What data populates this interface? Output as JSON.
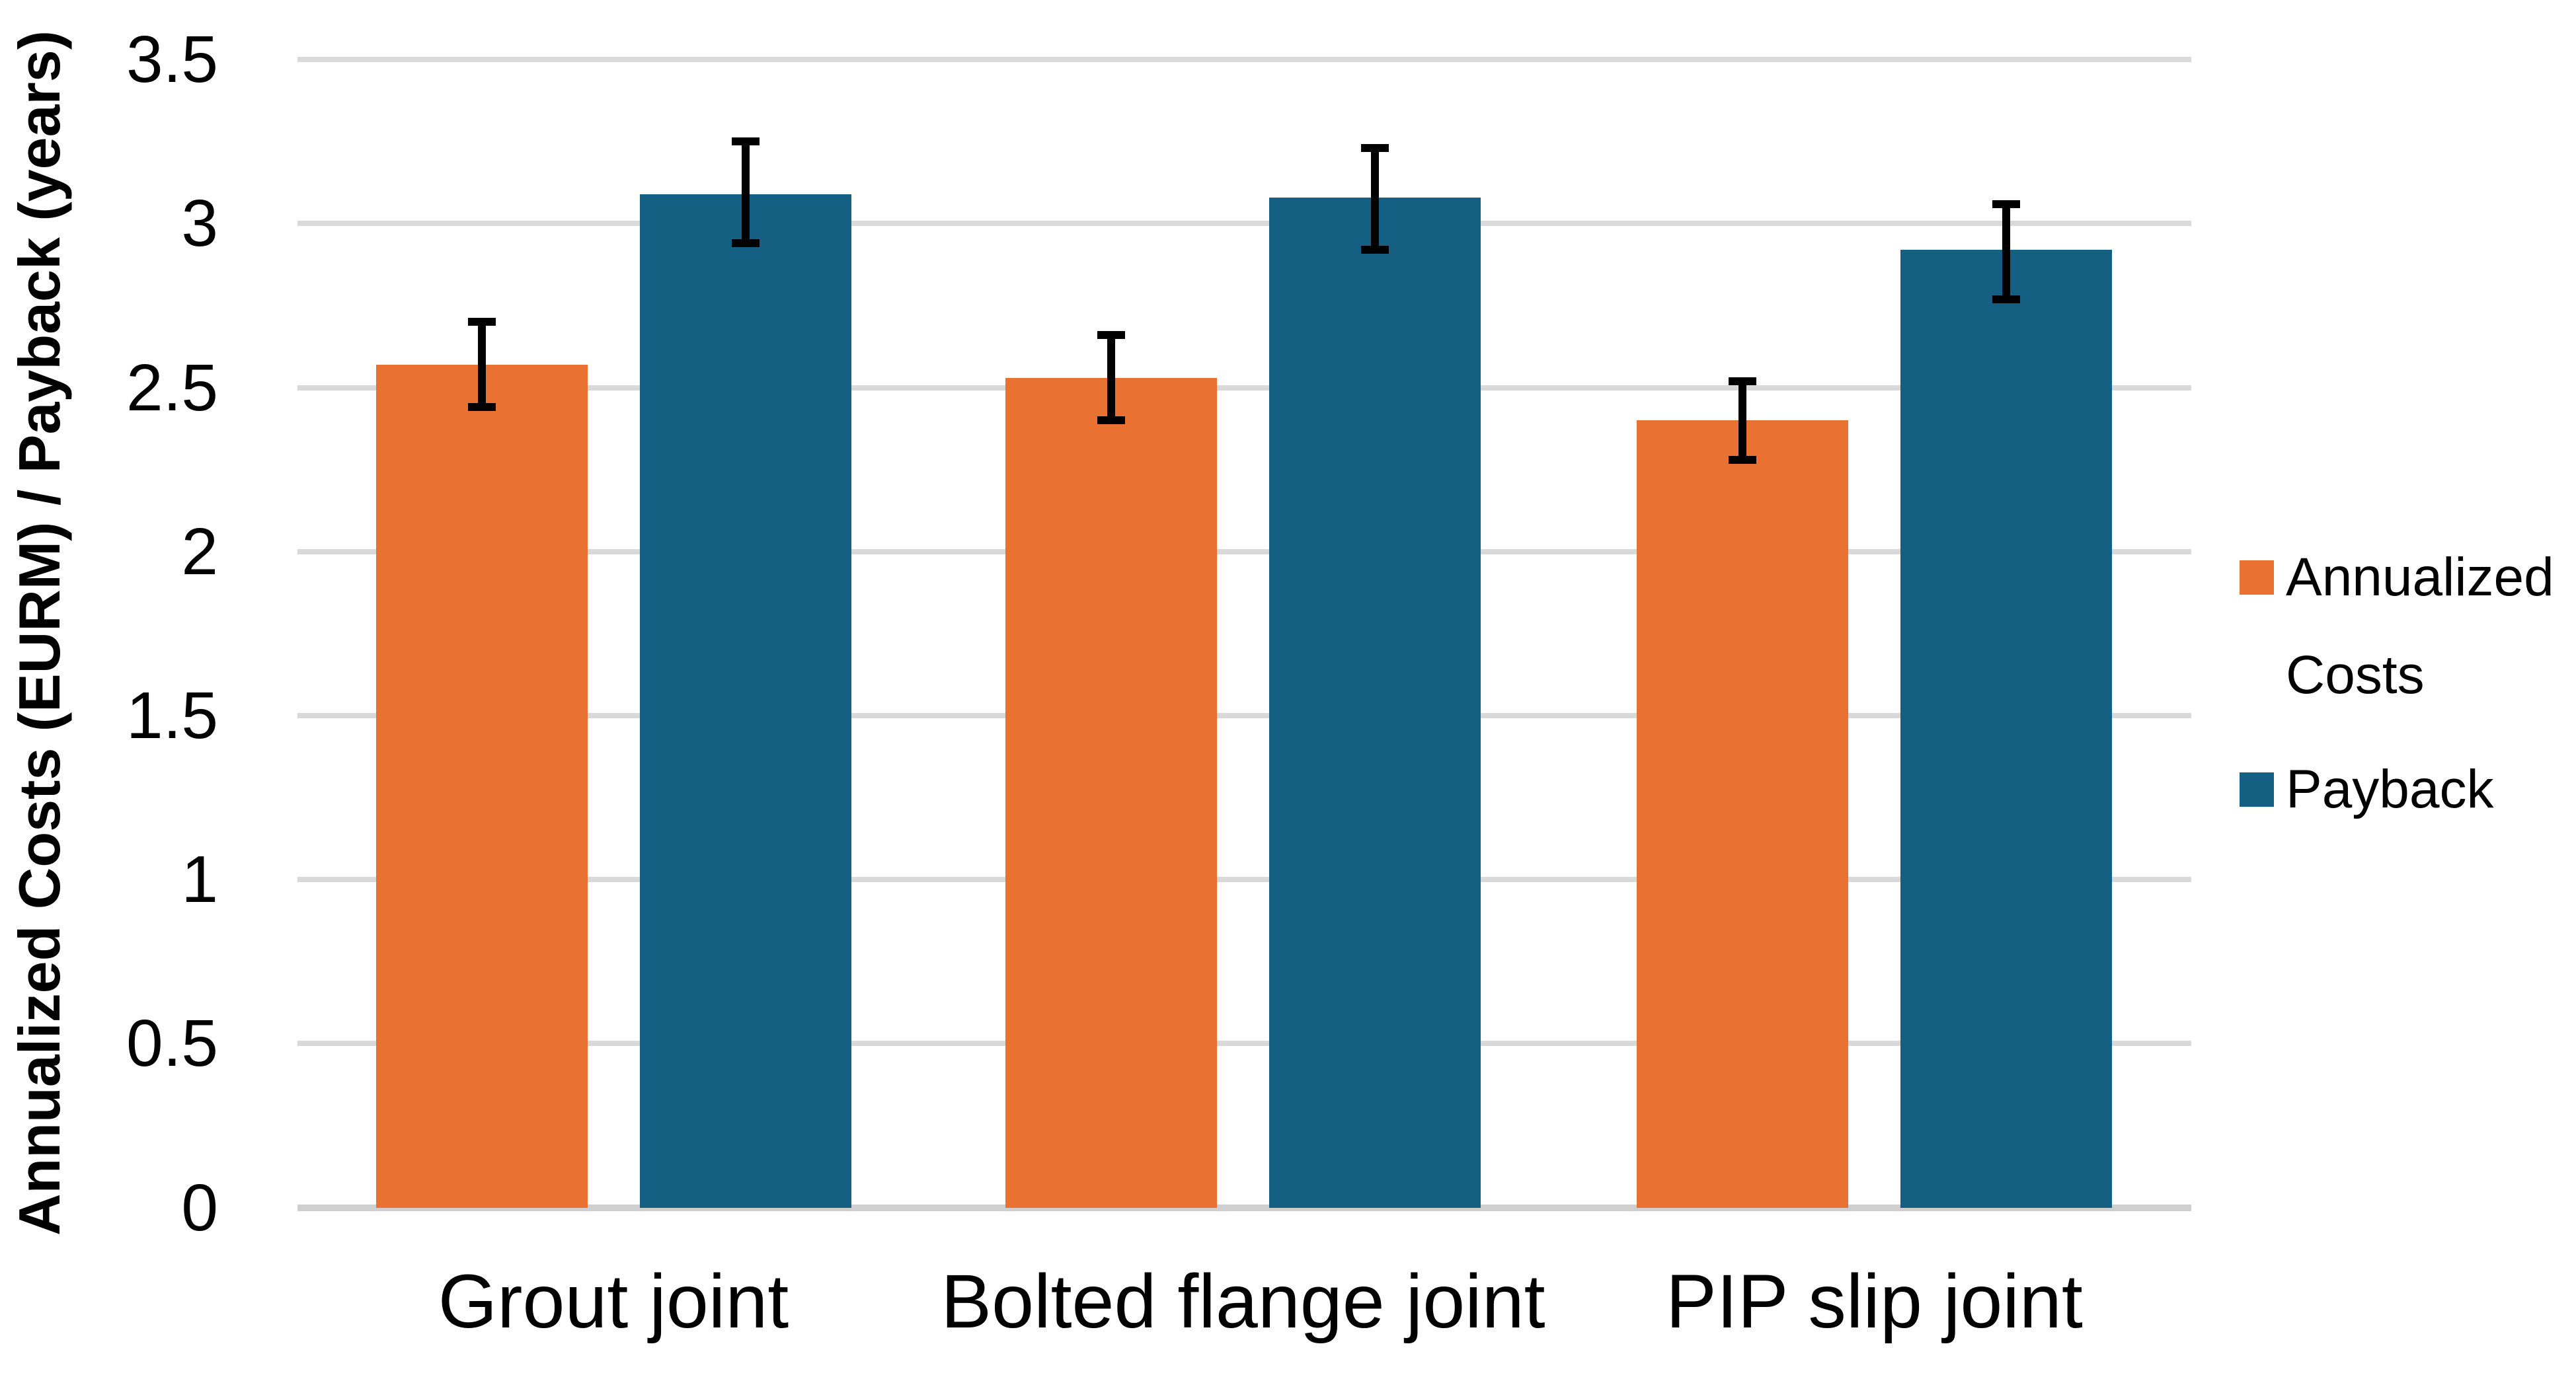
{
  "chart_data": {
    "type": "bar",
    "title": "",
    "xlabel": "",
    "ylabel": "Annualized Costs (EURM) / Payback (years)",
    "ylim": [
      0,
      3.5
    ],
    "ytick_step": 0.5,
    "yticks": [
      "3.5",
      "3",
      "2.5",
      "2",
      "1.5",
      "1",
      "0.5",
      "0"
    ],
    "grid": true,
    "legend_position": "right",
    "categories": [
      "Grout joint",
      "Bolted flange joint",
      "PIP slip joint"
    ],
    "series": [
      {
        "name": "Annualized Costs",
        "color": "#E97132",
        "values": [
          2.57,
          2.53,
          2.4
        ],
        "error_high": [
          2.7,
          2.66,
          2.52
        ],
        "error_low": [
          2.44,
          2.4,
          2.28
        ]
      },
      {
        "name": "Payback",
        "color": "#156082",
        "values": [
          3.09,
          3.08,
          2.92
        ],
        "error_high": [
          3.25,
          3.23,
          3.06
        ],
        "error_low": [
          2.94,
          2.92,
          2.77
        ]
      }
    ],
    "legend": [
      {
        "label": "Annualized Costs",
        "color": "#E97132"
      },
      {
        "label": "Payback",
        "color": "#156082"
      }
    ]
  },
  "colors": {
    "gridline": "#D9D9D9",
    "axis_line": "#CFCFCF",
    "error_bar": "#000000",
    "text": "#000000",
    "background": "#FFFFFF"
  }
}
